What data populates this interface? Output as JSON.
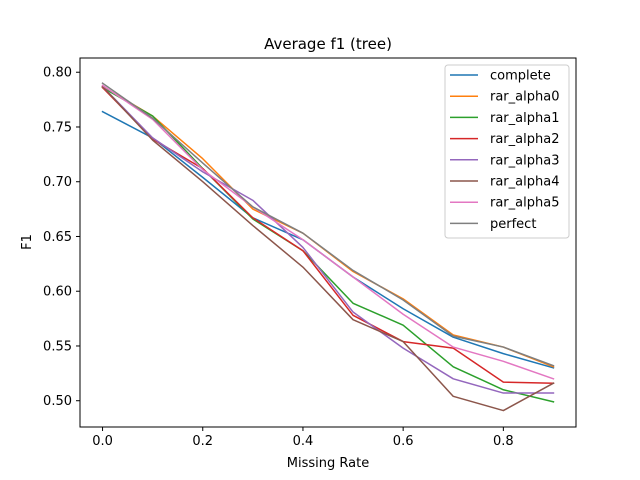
{
  "chart_data": {
    "type": "line",
    "title": "Average f1 (tree)",
    "xlabel": "Missing Rate",
    "ylabel": "F1",
    "xlim": [
      -0.045,
      0.945
    ],
    "ylim": [
      0.476,
      0.813
    ],
    "x": [
      0.0,
      0.1,
      0.2,
      0.3,
      0.4,
      0.5,
      0.6,
      0.7,
      0.8,
      0.9
    ],
    "xticks": [
      0.0,
      0.2,
      0.4,
      0.6,
      0.8
    ],
    "xtick_labels": [
      "0.0",
      "0.2",
      "0.4",
      "0.6",
      "0.8"
    ],
    "yticks": [
      0.5,
      0.55,
      0.6,
      0.65,
      0.7,
      0.75,
      0.8
    ],
    "ytick_labels": [
      "0.50",
      "0.55",
      "0.60",
      "0.65",
      "0.70",
      "0.75",
      "0.80"
    ],
    "grid": false,
    "legend_position": "top-right",
    "series": [
      {
        "name": "complete",
        "color": "#1f77b4",
        "values": [
          0.764,
          0.74,
          0.704,
          0.667,
          0.647,
          0.613,
          0.584,
          0.558,
          0.543,
          0.53
        ]
      },
      {
        "name": "rar_alpha0",
        "color": "#ff7f0e",
        "values": [
          0.787,
          0.76,
          0.721,
          0.675,
          0.653,
          0.618,
          0.593,
          0.56,
          0.549,
          0.531
        ]
      },
      {
        "name": "rar_alpha1",
        "color": "#2ca02c",
        "values": [
          0.786,
          0.76,
          0.712,
          0.666,
          0.637,
          0.589,
          0.569,
          0.531,
          0.51,
          0.499
        ]
      },
      {
        "name": "rar_alpha2",
        "color": "#d62728",
        "values": [
          0.786,
          0.739,
          0.712,
          0.667,
          0.637,
          0.578,
          0.554,
          0.548,
          0.517,
          0.516
        ]
      },
      {
        "name": "rar_alpha3",
        "color": "#9467bd",
        "values": [
          0.787,
          0.74,
          0.709,
          0.683,
          0.64,
          0.581,
          0.548,
          0.52,
          0.507,
          0.507
        ]
      },
      {
        "name": "rar_alpha4",
        "color": "#8c564b",
        "values": [
          0.787,
          0.738,
          0.7,
          0.66,
          0.622,
          0.574,
          0.554,
          0.504,
          0.491,
          0.516
        ]
      },
      {
        "name": "rar_alpha5",
        "color": "#e377c2",
        "values": [
          0.788,
          0.757,
          0.711,
          0.677,
          0.647,
          0.613,
          0.579,
          0.549,
          0.536,
          0.52
        ]
      },
      {
        "name": "perfect",
        "color": "#7f7f7f",
        "values": [
          0.79,
          0.758,
          0.717,
          0.677,
          0.653,
          0.619,
          0.592,
          0.559,
          0.549,
          0.532
        ]
      }
    ]
  }
}
